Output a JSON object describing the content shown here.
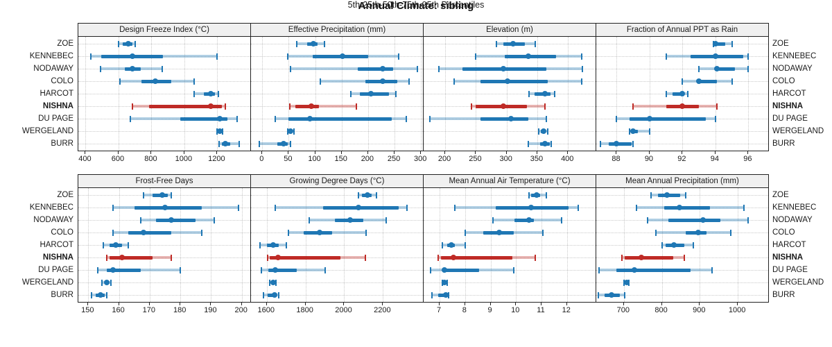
{
  "title": "Annual Climate: sibling",
  "footer": "5th-25th-50th-75th-95th Percentiles",
  "percentile_labels": [
    "5th",
    "25th",
    "50th",
    "75th",
    "95th"
  ],
  "sites": [
    "ZOE",
    "KENNEBEC",
    "NODAWAY",
    "COLO",
    "HARCOT",
    "NISHNA",
    "DU PAGE",
    "WERGELAND",
    "BURR"
  ],
  "highlight_site": "NISHNA",
  "colors": {
    "normal": "#1f77b4",
    "highlight": "#bf2b26",
    "header_bg": "#f0f0f0",
    "panel_border": "#222222",
    "grid": "#c9c9c9"
  },
  "chart_data": [
    {
      "type": "dot-interval",
      "title": "Design Freeze Index (°C)",
      "band": "top",
      "xlim": [
        360,
        1405
      ],
      "ticks": [
        400,
        600,
        800,
        1000,
        1200
      ],
      "series": [
        {
          "name": "ZOE",
          "percentiles": [
            600,
            625,
            660,
            685,
            702
          ]
        },
        {
          "name": "KENNEBEC",
          "percentiles": [
            432,
            495,
            683,
            870,
            1198
          ]
        },
        {
          "name": "NODAWAY",
          "percentiles": [
            490,
            640,
            684,
            736,
            864
          ]
        },
        {
          "name": "COLO",
          "percentiles": [
            608,
            740,
            825,
            920,
            1058
          ]
        },
        {
          "name": "HARCOT",
          "percentiles": [
            1058,
            1120,
            1160,
            1186,
            1206
          ]
        },
        {
          "name": "NISHNA",
          "percentiles": [
            685,
            785,
            1160,
            1226,
            1250
          ]
        },
        {
          "name": "DU PAGE",
          "percentiles": [
            670,
            975,
            1215,
            1262,
            1320
          ]
        },
        {
          "name": "WERGELAND",
          "percentiles": [
            1200,
            1210,
            1216,
            1223,
            1231
          ]
        },
        {
          "name": "BURR",
          "percentiles": [
            1210,
            1228,
            1248,
            1278,
            1335
          ]
        }
      ]
    },
    {
      "type": "dot-interval",
      "title": "Effective Precipitation (mm)",
      "band": "top",
      "xlim": [
        -20,
        305
      ],
      "ticks": [
        0,
        50,
        100,
        150,
        200,
        250,
        300
      ],
      "series": [
        {
          "name": "ZOE",
          "percentiles": [
            65,
            85,
            97,
            104,
            117
          ]
        },
        {
          "name": "KENNEBEC",
          "percentiles": [
            48,
            95,
            152,
            200,
            258
          ]
        },
        {
          "name": "NODAWAY",
          "percentiles": [
            53,
            180,
            228,
            247,
            293
          ]
        },
        {
          "name": "COLO",
          "percentiles": [
            110,
            195,
            228,
            255,
            278
          ]
        },
        {
          "name": "HARCOT",
          "percentiles": [
            167,
            185,
            205,
            240,
            253
          ]
        },
        {
          "name": "NISHNA",
          "percentiles": [
            52,
            63,
            93,
            107,
            178
          ]
        },
        {
          "name": "DU PAGE",
          "percentiles": [
            25,
            50,
            90,
            245,
            272
          ]
        },
        {
          "name": "WERGELAND",
          "percentiles": [
            48,
            51,
            53,
            56,
            60
          ]
        },
        {
          "name": "BURR",
          "percentiles": [
            -5,
            28,
            40,
            48,
            53
          ]
        }
      ]
    },
    {
      "type": "dot-interval",
      "title": "Elevation (m)",
      "band": "top",
      "xlim": [
        166,
        446
      ],
      "ticks": [
        200,
        250,
        300,
        350,
        400
      ],
      "series": [
        {
          "name": "ZOE",
          "percentiles": [
            283,
            295,
            310,
            330,
            347
          ]
        },
        {
          "name": "KENNEBEC",
          "percentiles": [
            250,
            297,
            335,
            380,
            422
          ]
        },
        {
          "name": "NODAWAY",
          "percentiles": [
            190,
            228,
            295,
            365,
            423
          ]
        },
        {
          "name": "COLO",
          "percentiles": [
            215,
            258,
            302,
            367,
            422
          ]
        },
        {
          "name": "HARCOT",
          "percentiles": [
            337,
            345,
            363,
            372,
            378
          ]
        },
        {
          "name": "NISHNA",
          "percentiles": [
            243,
            250,
            295,
            333,
            363
          ]
        },
        {
          "name": "DU PAGE",
          "percentiles": [
            175,
            258,
            307,
            335,
            365
          ]
        },
        {
          "name": "WERGELAND",
          "percentiles": [
            352,
            356,
            360,
            364,
            367
          ]
        },
        {
          "name": "BURR",
          "percentiles": [
            335,
            355,
            363,
            370,
            373
          ]
        }
      ]
    },
    {
      "type": "dot-interval",
      "title": "Fraction of Annual PPT as Rain",
      "band": "top",
      "xlim": [
        86.8,
        97.25
      ],
      "ticks": [
        88,
        90,
        92,
        94,
        96
      ],
      "series": [
        {
          "name": "ZOE",
          "percentiles": [
            93.9,
            94.0,
            94.0,
            94.6,
            95.0
          ]
        },
        {
          "name": "KENNEBEC",
          "percentiles": [
            91.0,
            92.5,
            94.0,
            95.7,
            96.0
          ]
        },
        {
          "name": "NODAWAY",
          "percentiles": [
            93.0,
            94.0,
            94.1,
            95.2,
            96.0
          ]
        },
        {
          "name": "COLO",
          "percentiles": [
            92.0,
            92.9,
            93.0,
            94.1,
            95.0
          ]
        },
        {
          "name": "HARCOT",
          "percentiles": [
            91.0,
            91.4,
            92.0,
            92.1,
            92.3
          ]
        },
        {
          "name": "NISHNA",
          "percentiles": [
            89.0,
            91.0,
            92.0,
            93.0,
            94.1
          ]
        },
        {
          "name": "DU PAGE",
          "percentiles": [
            88.0,
            88.8,
            90.0,
            93.4,
            94.0
          ]
        },
        {
          "name": "WERGELAND",
          "percentiles": [
            88.8,
            88.9,
            89.0,
            89.3,
            90.0
          ]
        },
        {
          "name": "BURR",
          "percentiles": [
            87.0,
            87.5,
            88.0,
            88.9,
            89.0
          ]
        }
      ]
    },
    {
      "type": "dot-interval",
      "title": "Frost-Free Days",
      "band": "bottom",
      "xlim": [
        147,
        203
      ],
      "ticks": [
        150,
        160,
        170,
        180,
        190,
        200
      ],
      "series": [
        {
          "name": "ZOE",
          "percentiles": [
            168,
            171,
            174,
            176,
            177
          ]
        },
        {
          "name": "KENNEBEC",
          "percentiles": [
            158,
            165,
            175,
            187,
            199
          ]
        },
        {
          "name": "NODAWAY",
          "percentiles": [
            167,
            172,
            177,
            185,
            191
          ]
        },
        {
          "name": "COLO",
          "percentiles": [
            158,
            163,
            168,
            177,
            187
          ]
        },
        {
          "name": "HARCOT",
          "percentiles": [
            155,
            157,
            159,
            161,
            163
          ]
        },
        {
          "name": "NISHNA",
          "percentiles": [
            156,
            157,
            161,
            171,
            177
          ]
        },
        {
          "name": "DU PAGE",
          "percentiles": [
            153,
            156,
            158,
            167,
            180
          ]
        },
        {
          "name": "WERGELAND",
          "percentiles": [
            154.5,
            155.3,
            156,
            156.7,
            157.3
          ]
        },
        {
          "name": "BURR",
          "percentiles": [
            151,
            152.5,
            154,
            155.3,
            156
          ]
        }
      ]
    },
    {
      "type": "dot-interval",
      "title": "Growing Degree Days (°C)",
      "band": "bottom",
      "xlim": [
        1522,
        2410
      ],
      "ticks": [
        1600,
        1800,
        2000,
        2200
      ],
      "series": [
        {
          "name": "ZOE",
          "percentiles": [
            2075,
            2092,
            2120,
            2142,
            2168
          ]
        },
        {
          "name": "KENNEBEC",
          "percentiles": [
            1642,
            1890,
            2075,
            2280,
            2325
          ]
        },
        {
          "name": "NODAWAY",
          "percentiles": [
            1820,
            1950,
            2030,
            2100,
            2215
          ]
        },
        {
          "name": "COLO",
          "percentiles": [
            1713,
            1790,
            1873,
            1936,
            2113
          ]
        },
        {
          "name": "HARCOT",
          "percentiles": [
            1565,
            1602,
            1632,
            1662,
            1700
          ]
        },
        {
          "name": "NISHNA",
          "percentiles": [
            1605,
            1615,
            1658,
            1980,
            2110
          ]
        },
        {
          "name": "DU PAGE",
          "percentiles": [
            1572,
            1607,
            1642,
            1755,
            1900
          ]
        },
        {
          "name": "WERGELAND",
          "percentiles": [
            1615,
            1625,
            1632,
            1639,
            1646
          ]
        },
        {
          "name": "BURR",
          "percentiles": [
            1582,
            1605,
            1640,
            1652,
            1663
          ]
        }
      ]
    },
    {
      "type": "dot-interval",
      "title": "Mean Annual Air Temperature (°C)",
      "band": "bottom",
      "xlim": [
        6.4,
        13.15
      ],
      "ticks": [
        7,
        8,
        9,
        10,
        11,
        12
      ],
      "series": [
        {
          "name": "ZOE",
          "percentiles": [
            10.5,
            10.6,
            10.8,
            10.95,
            11.2
          ]
        },
        {
          "name": "KENNEBEC",
          "percentiles": [
            7.6,
            9.2,
            10.6,
            12.05,
            12.45
          ]
        },
        {
          "name": "NODAWAY",
          "percentiles": [
            9.1,
            9.95,
            10.5,
            10.7,
            11.8
          ]
        },
        {
          "name": "COLO",
          "percentiles": [
            8.0,
            8.7,
            9.35,
            9.9,
            11.05
          ]
        },
        {
          "name": "HARCOT",
          "percentiles": [
            7.1,
            7.3,
            7.45,
            7.6,
            8.0
          ]
        },
        {
          "name": "NISHNA",
          "percentiles": [
            6.95,
            7.05,
            7.55,
            9.85,
            10.75
          ]
        },
        {
          "name": "DU PAGE",
          "percentiles": [
            6.65,
            7.1,
            7.2,
            8.55,
            9.9
          ]
        },
        {
          "name": "WERGELAND",
          "percentiles": [
            7.1,
            7.15,
            7.2,
            7.25,
            7.3
          ]
        },
        {
          "name": "BURR",
          "percentiles": [
            6.7,
            6.95,
            7.25,
            7.3,
            7.35
          ]
        }
      ]
    },
    {
      "type": "dot-interval",
      "title": "Mean Annual Precipitation (mm)",
      "band": "bottom",
      "xlim": [
        629,
        1082
      ],
      "ticks": [
        700,
        800,
        900,
        1000
      ],
      "series": [
        {
          "name": "ZOE",
          "percentiles": [
            771,
            790,
            813,
            848,
            862
          ]
        },
        {
          "name": "KENNEBEC",
          "percentiles": [
            734,
            806,
            846,
            926,
            1016
          ]
        },
        {
          "name": "NODAWAY",
          "percentiles": [
            762,
            818,
            909,
            955,
            1027
          ]
        },
        {
          "name": "COLO",
          "percentiles": [
            785,
            862,
            896,
            918,
            982
          ]
        },
        {
          "name": "HARCOT",
          "percentiles": [
            800,
            810,
            832,
            860,
            882
          ]
        },
        {
          "name": "NISHNA",
          "percentiles": [
            695,
            702,
            745,
            830,
            860
          ]
        },
        {
          "name": "DU PAGE",
          "percentiles": [
            635,
            680,
            727,
            875,
            933
          ]
        },
        {
          "name": "WERGELAND",
          "percentiles": [
            700,
            704,
            707,
            710,
            713
          ]
        },
        {
          "name": "BURR",
          "percentiles": [
            632,
            650,
            667,
            690,
            702
          ]
        }
      ]
    }
  ]
}
